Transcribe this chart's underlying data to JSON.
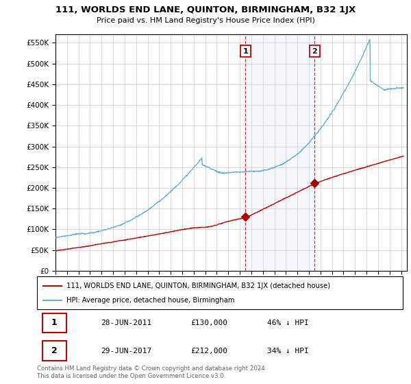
{
  "title": "111, WORLDS END LANE, QUINTON, BIRMINGHAM, B32 1JX",
  "subtitle": "Price paid vs. HM Land Registry's House Price Index (HPI)",
  "ylim": [
    0,
    570000
  ],
  "yticks": [
    0,
    50000,
    100000,
    150000,
    200000,
    250000,
    300000,
    350000,
    400000,
    450000,
    500000,
    550000
  ],
  "xlim_start": 1995.0,
  "xlim_end": 2025.5,
  "hpi_color": "#6baed6",
  "price_color": "#cc0000",
  "marker_color": "#aa0000",
  "sale1_x": 2011.49,
  "sale1_y": 130000,
  "sale2_x": 2017.49,
  "sale2_y": 212000,
  "legend_entries": [
    "111, WORLDS END LANE, QUINTON, BIRMINGHAM, B32 1JX (detached house)",
    "HPI: Average price, detached house, Birmingham"
  ],
  "table_rows": [
    [
      "1",
      "28-JUN-2011",
      "£130,000",
      "46% ↓ HPI"
    ],
    [
      "2",
      "29-JUN-2017",
      "£212,000",
      "34% ↓ HPI"
    ]
  ],
  "footnote": "Contains HM Land Registry data © Crown copyright and database right 2024.\nThis data is licensed under the Open Government Licence v3.0.",
  "vline1_x": 2011.49,
  "vline2_x": 2017.49,
  "background_color": "#ffffff",
  "grid_color": "#cccccc"
}
